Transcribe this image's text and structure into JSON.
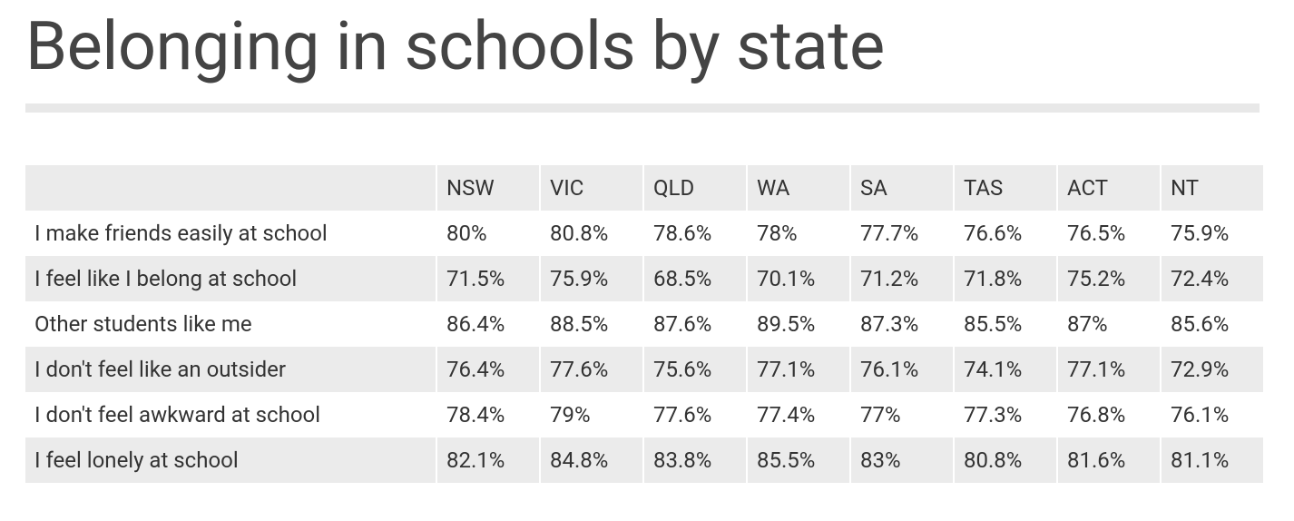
{
  "header": {
    "title": "Belonging in schools by state"
  },
  "table": {
    "columns": [
      "",
      "NSW",
      "VIC",
      "QLD",
      "WA",
      "SA",
      "TAS",
      "ACT",
      "NT"
    ],
    "rows": [
      [
        "I make friends easily at school",
        "80%",
        "80.8%",
        "78.6%",
        "78%",
        "77.7%",
        "76.6%",
        "76.5%",
        "75.9%"
      ],
      [
        "I feel like I belong at school",
        "71.5%",
        "75.9%",
        "68.5%",
        "70.1%",
        "71.2%",
        "71.8%",
        "75.2%",
        "72.4%"
      ],
      [
        "Other students like me",
        "86.4%",
        "88.5%",
        "87.6%",
        "89.5%",
        "87.3%",
        "85.5%",
        "87%",
        "85.6%"
      ],
      [
        "I don't feel like an outsider",
        "76.4%",
        "77.6%",
        "75.6%",
        "77.1%",
        "76.1%",
        "74.1%",
        "77.1%",
        "72.9%"
      ],
      [
        "I don't feel awkward at school",
        "78.4%",
        "79%",
        "77.6%",
        "77.4%",
        "77%",
        "77.3%",
        "76.8%",
        "76.1%"
      ],
      [
        "I feel lonely at school",
        "82.1%",
        "84.8%",
        "83.8%",
        "85.5%",
        "83%",
        "80.8%",
        "81.6%",
        "81.1%"
      ]
    ]
  }
}
